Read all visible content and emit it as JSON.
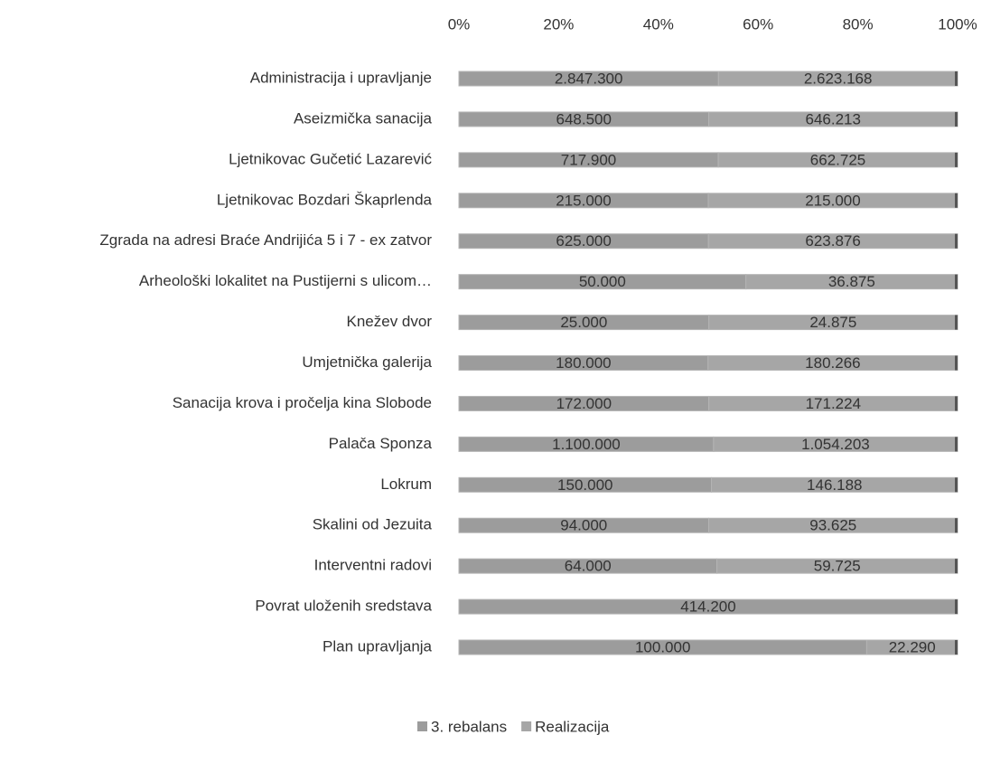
{
  "chart_data": {
    "type": "bar_stacked_100_horizontal",
    "categories": [
      "Administracija i upravljanje",
      "Aseizmička sanacija",
      "Ljetnikovac Gučetić Lazarević",
      "Ljetnikovac Bozdari Škaprlenda",
      "Zgrada na adresi Braće Andrijića 5 i 7 - ex zatvor",
      "Arheološki lokalitet na Pustijerni s ulicom…",
      "Knežev dvor",
      "Umjetnička galerija",
      "Sanacija krova i pročelja kina Slobode",
      "Palača Sponza",
      "Lokrum",
      "Skalini od Jezuita",
      "Interventni radovi",
      "Povrat uloženih sredstava",
      "Plan upravljanja"
    ],
    "series": [
      {
        "name": "3. rebalans",
        "color": "#9c9c9c",
        "values": [
          2847300,
          648500,
          717900,
          215000,
          625000,
          50000,
          25000,
          180000,
          172000,
          1100000,
          150000,
          94000,
          64000,
          414200,
          100000
        ],
        "value_labels": [
          "2.847.300",
          "648.500",
          "717.900",
          "215.000",
          "625.000",
          "50.000",
          "25.000",
          "180.000",
          "172.000",
          "1.100.000",
          "150.000",
          "94.000",
          "64.000",
          "414.200",
          "100.000"
        ]
      },
      {
        "name": "Realizacija",
        "color": "#a6a6a6",
        "values": [
          2623168,
          646213,
          662725,
          215000,
          623876,
          36875,
          24875,
          180266,
          171224,
          1054203,
          146188,
          93625,
          59725,
          null,
          22290
        ],
        "value_labels": [
          "2.623.168",
          "646.213",
          "662.725",
          "215.000",
          "623.876",
          "36.875",
          "24.875",
          "180.266",
          "171.224",
          "1.054.203",
          "146.188",
          "93.625",
          "59.725",
          null,
          "22.290"
        ]
      }
    ],
    "xlim": [
      0,
      100
    ],
    "xticks": [
      {
        "value": 0,
        "label": "0%"
      },
      {
        "value": 20,
        "label": "20%"
      },
      {
        "value": 40,
        "label": "40%"
      },
      {
        "value": 60,
        "label": "60%"
      },
      {
        "value": 80,
        "label": "80%"
      },
      {
        "value": 100,
        "label": "100%"
      }
    ],
    "legend": "bottom"
  }
}
